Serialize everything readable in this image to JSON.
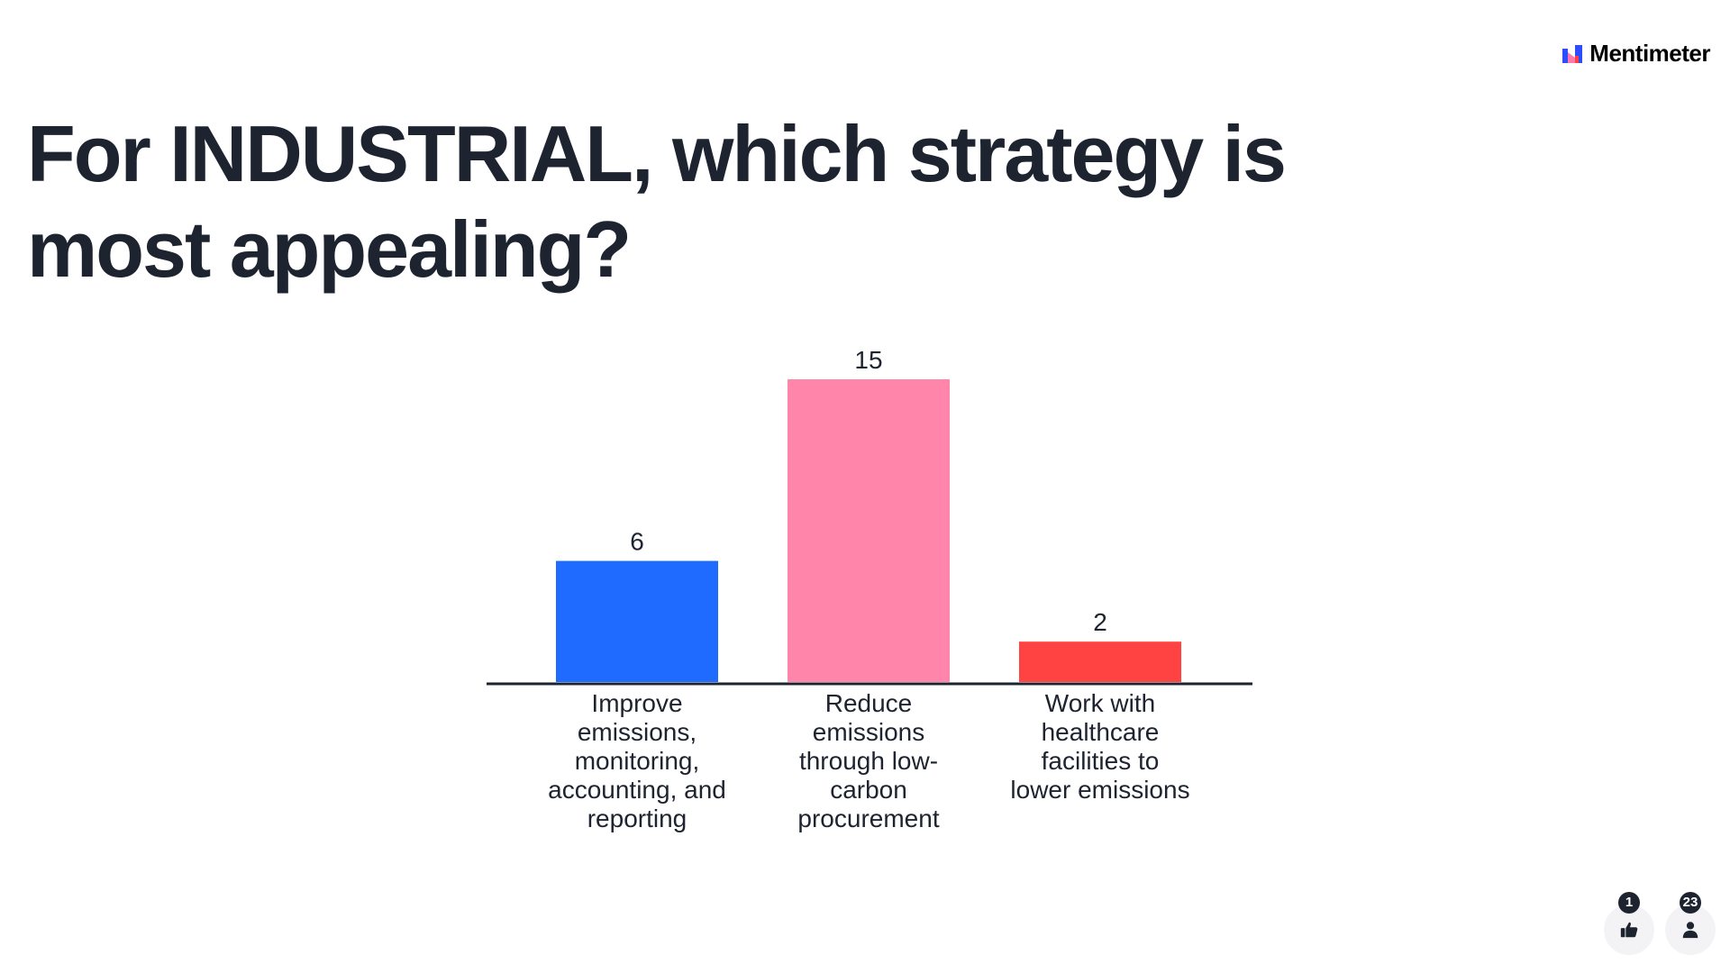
{
  "brand": {
    "name": "Mentimeter",
    "colors": [
      "#2d4bff",
      "#ff7aa8",
      "#ff4040"
    ]
  },
  "question": {
    "title": "For INDUSTRIAL, which strategy is most appealing?"
  },
  "chart_data": {
    "type": "bar",
    "categories": [
      "Improve emissions, monitoring, accounting, and reporting",
      "Reduce emissions through low-carbon procurement",
      "Work with healthcare facilities to lower emissions"
    ],
    "values": [
      6,
      15,
      2
    ],
    "colors": [
      "#1f6bff",
      "#ff85ab",
      "#ff4242"
    ],
    "title": "",
    "xlabel": "",
    "ylabel": "",
    "ylim": [
      0,
      15
    ],
    "grid": false,
    "legend": "none"
  },
  "reactions": {
    "likes": {
      "icon": "thumbs-up-icon",
      "count": "1"
    },
    "participants": {
      "icon": "person-icon",
      "count": "23"
    }
  }
}
